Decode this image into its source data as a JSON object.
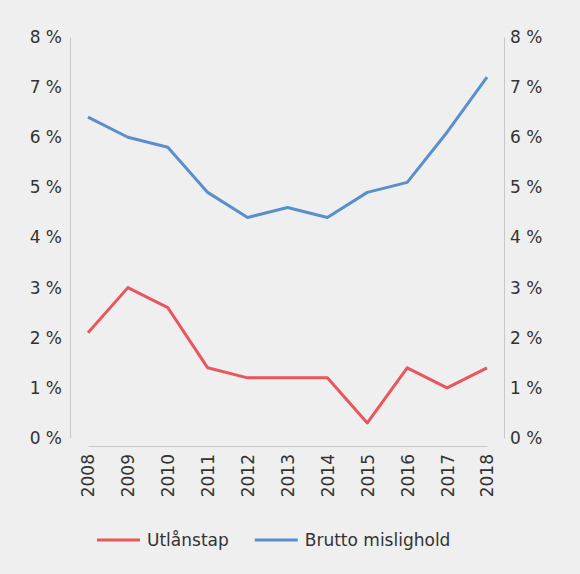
{
  "chart_data": {
    "type": "line",
    "categories": [
      "2008",
      "2009",
      "2010",
      "2011",
      "2012",
      "2013",
      "2014",
      "2015",
      "2016",
      "2017",
      "2018"
    ],
    "series": [
      {
        "name": "Utlånstap",
        "color": "#e8575e",
        "values": [
          2.1,
          3.0,
          2.6,
          1.4,
          1.2,
          1.2,
          1.2,
          0.3,
          1.4,
          1.0,
          1.4
        ]
      },
      {
        "name": "Brutto mislighold",
        "color": "#5b8fcb",
        "values": [
          6.4,
          6.0,
          5.8,
          4.9,
          4.4,
          4.6,
          4.4,
          4.9,
          5.1,
          6.1,
          7.2
        ]
      }
    ],
    "ylim": [
      0,
      8
    ],
    "yticks": [
      {
        "value": 0,
        "label": "0 %"
      },
      {
        "value": 1,
        "label": "1 %"
      },
      {
        "value": 2,
        "label": "2 %"
      },
      {
        "value": 3,
        "label": "3 %"
      },
      {
        "value": 4,
        "label": "4 %"
      },
      {
        "value": 5,
        "label": "5 %"
      },
      {
        "value": 6,
        "label": "6 %"
      },
      {
        "value": 7,
        "label": "7 %"
      },
      {
        "value": 8,
        "label": "8 %"
      }
    ],
    "y2lim": [
      0,
      8
    ],
    "y2ticks": [
      {
        "value": 0,
        "label": "0 %"
      },
      {
        "value": 1,
        "label": "1 %"
      },
      {
        "value": 2,
        "label": "2 %"
      },
      {
        "value": 3,
        "label": "3 %"
      },
      {
        "value": 4,
        "label": "4 %"
      },
      {
        "value": 5,
        "label": "5 %"
      },
      {
        "value": 6,
        "label": "6 %"
      },
      {
        "value": 7,
        "label": "7 %"
      },
      {
        "value": 8,
        "label": "8 %"
      }
    ],
    "grid": false,
    "legend": "bottom"
  }
}
